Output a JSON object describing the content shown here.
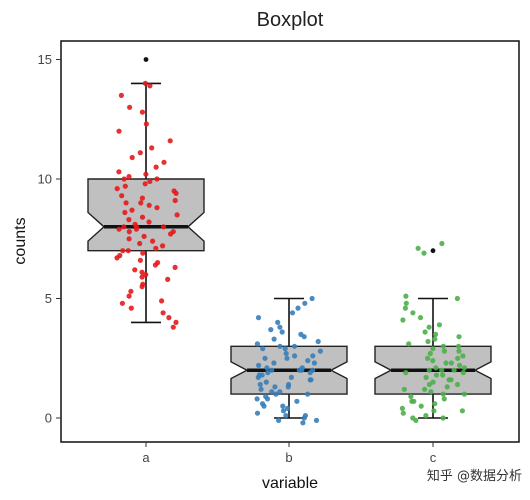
{
  "chart_data": {
    "type": "boxplot",
    "title": "Boxplot",
    "xlabel": "variable",
    "ylabel": "counts",
    "categories": [
      "a",
      "b",
      "c"
    ],
    "ylim": [
      -1,
      15.8
    ],
    "yticks": [
      0,
      5,
      10,
      15
    ],
    "notched": true,
    "grid": false,
    "box_fill": "#c0c0c0",
    "box_stroke": "#222222",
    "point_colors": [
      "#e31a1c",
      "#377eb8",
      "#4daf4a"
    ],
    "series": [
      {
        "category": "a",
        "whisker_low": 4,
        "q1": 7,
        "median": 8,
        "q3": 10,
        "whisker_high": 14,
        "notch_low": 7.4,
        "notch_high": 8.6,
        "outliers": [
          15
        ],
        "points": [
          14.0,
          13.9,
          13.5,
          13.0,
          12.8,
          12.3,
          12.0,
          11.6,
          11.3,
          11.1,
          10.9,
          10.7,
          10.5,
          10.3,
          10.2,
          10.1,
          10.0,
          10.0,
          9.9,
          9.8,
          9.7,
          9.6,
          9.5,
          9.4,
          9.3,
          9.2,
          9.1,
          9.0,
          9.0,
          8.9,
          8.8,
          8.7,
          8.6,
          8.5,
          8.4,
          8.3,
          8.2,
          8.1,
          8.0,
          8.0,
          8.0,
          7.9,
          7.9,
          7.8,
          7.8,
          7.7,
          7.6,
          7.5,
          7.4,
          7.3,
          7.2,
          7.1,
          7.0,
          7.0,
          6.9,
          6.8,
          6.7,
          6.6,
          6.5,
          6.4,
          6.3,
          6.2,
          6.1,
          6.0,
          5.9,
          5.8,
          5.6,
          5.5,
          5.3,
          5.1,
          4.9,
          4.8,
          4.6,
          4.4,
          4.2,
          4.0,
          3.8
        ]
      },
      {
        "category": "b",
        "whisker_low": 0,
        "q1": 1,
        "median": 2,
        "q3": 3,
        "whisker_high": 5,
        "notch_low": 1.65,
        "notch_high": 2.35,
        "outliers": [],
        "points": [
          5.0,
          4.8,
          4.6,
          4.4,
          4.2,
          4.0,
          3.8,
          3.7,
          3.6,
          3.5,
          3.4,
          3.3,
          3.2,
          3.1,
          3.0,
          3.0,
          2.9,
          2.9,
          2.8,
          2.7,
          2.6,
          2.6,
          2.5,
          2.5,
          2.4,
          2.3,
          2.3,
          2.2,
          2.1,
          2.1,
          2.0,
          2.0,
          2.0,
          2.0,
          1.9,
          1.9,
          1.8,
          1.8,
          1.7,
          1.7,
          1.6,
          1.6,
          1.5,
          1.4,
          1.4,
          1.3,
          1.3,
          1.2,
          1.1,
          1.1,
          1.0,
          1.0,
          0.9,
          0.8,
          0.8,
          0.7,
          0.6,
          0.5,
          0.5,
          0.4,
          0.3,
          0.2,
          0.1,
          0.1,
          0.0,
          -0.1,
          -0.1,
          -0.2
        ]
      },
      {
        "category": "c",
        "whisker_low": 0,
        "q1": 1,
        "median": 2,
        "q3": 3,
        "whisker_high": 5,
        "notch_low": 1.65,
        "notch_high": 2.35,
        "outliers": [
          7
        ],
        "points": [
          7.3,
          7.1,
          6.9,
          5.1,
          5.0,
          4.8,
          4.6,
          4.4,
          4.2,
          4.1,
          3.9,
          3.8,
          3.6,
          3.5,
          3.4,
          3.3,
          3.2,
          3.1,
          3.0,
          3.0,
          2.9,
          2.8,
          2.8,
          2.7,
          2.6,
          2.5,
          2.5,
          2.4,
          2.3,
          2.3,
          2.2,
          2.1,
          2.1,
          2.0,
          2.0,
          2.0,
          1.9,
          1.9,
          1.8,
          1.8,
          1.7,
          1.6,
          1.6,
          1.5,
          1.4,
          1.4,
          1.3,
          1.2,
          1.2,
          1.1,
          1.0,
          1.0,
          0.9,
          0.8,
          0.7,
          0.7,
          0.6,
          0.5,
          0.4,
          0.3,
          0.3,
          0.2,
          0.1,
          0.0,
          0.0,
          -0.1
        ]
      }
    ]
  },
  "watermark": "知乎 @数据分析"
}
